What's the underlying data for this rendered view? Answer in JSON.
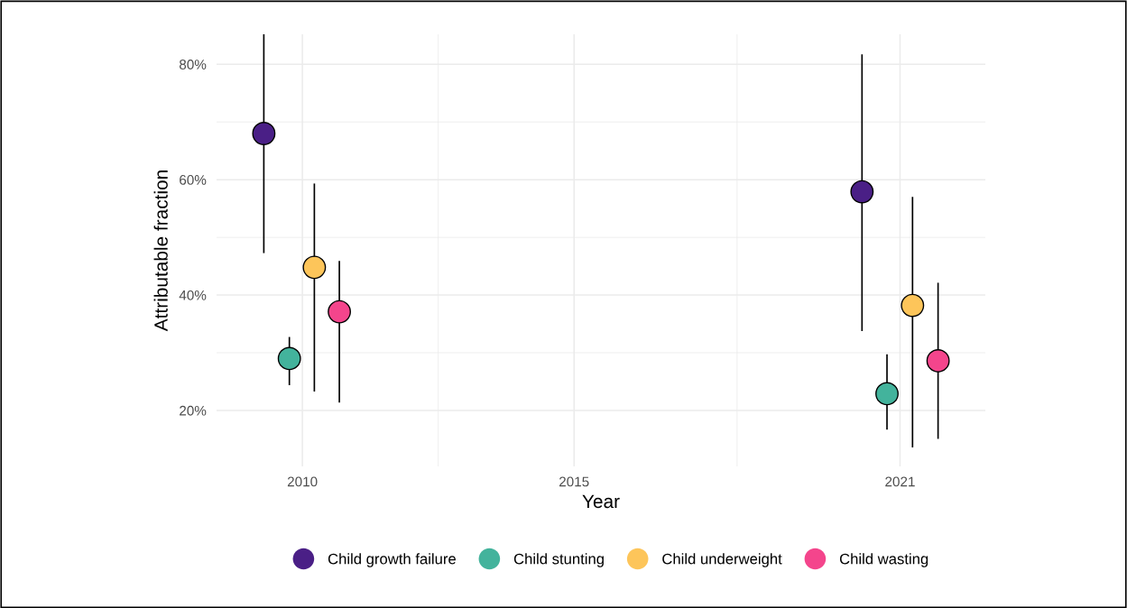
{
  "chart_data": {
    "type": "scatter",
    "xlabel": "Year",
    "ylabel": "Attributable fraction",
    "xlim": [
      2008.42,
      2022.57
    ],
    "xticks": [
      2010,
      2015,
      2021
    ],
    "ylim": [
      10.3,
      85.2
    ],
    "yticks": [
      {
        "value": 20,
        "label": "20%"
      },
      {
        "value": 40,
        "label": "40%"
      },
      {
        "value": 60,
        "label": "60%"
      },
      {
        "value": 80,
        "label": "80%"
      }
    ],
    "grid": true,
    "legend": "bottom",
    "marker": "circle",
    "series": [
      {
        "name": "Child growth failure",
        "color": "#4a1f86",
        "x": [
          2009.29,
          2020.3
        ],
        "values": [
          68.0,
          57.9
        ],
        "errors": [
          [
            47.4,
            85.2
          ],
          [
            33.9,
            81.6
          ]
        ]
      },
      {
        "name": "Child stunting",
        "color": "#43b39c",
        "x": [
          2009.76,
          2020.76
        ],
        "values": [
          29.0,
          22.9
        ],
        "errors": [
          [
            24.5,
            32.6
          ],
          [
            16.8,
            29.6
          ]
        ]
      },
      {
        "name": "Child underweight",
        "color": "#fdc55a",
        "x": [
          2010.22,
          2021.23
        ],
        "values": [
          44.8,
          38.2
        ],
        "errors": [
          [
            23.4,
            59.2
          ],
          [
            13.7,
            56.9
          ]
        ]
      },
      {
        "name": "Child wasting",
        "color": "#f4458c",
        "x": [
          2010.68,
          2021.7
        ],
        "values": [
          37.1,
          28.6
        ],
        "errors": [
          [
            21.5,
            45.8
          ],
          [
            15.2,
            42.0
          ]
        ]
      }
    ]
  }
}
